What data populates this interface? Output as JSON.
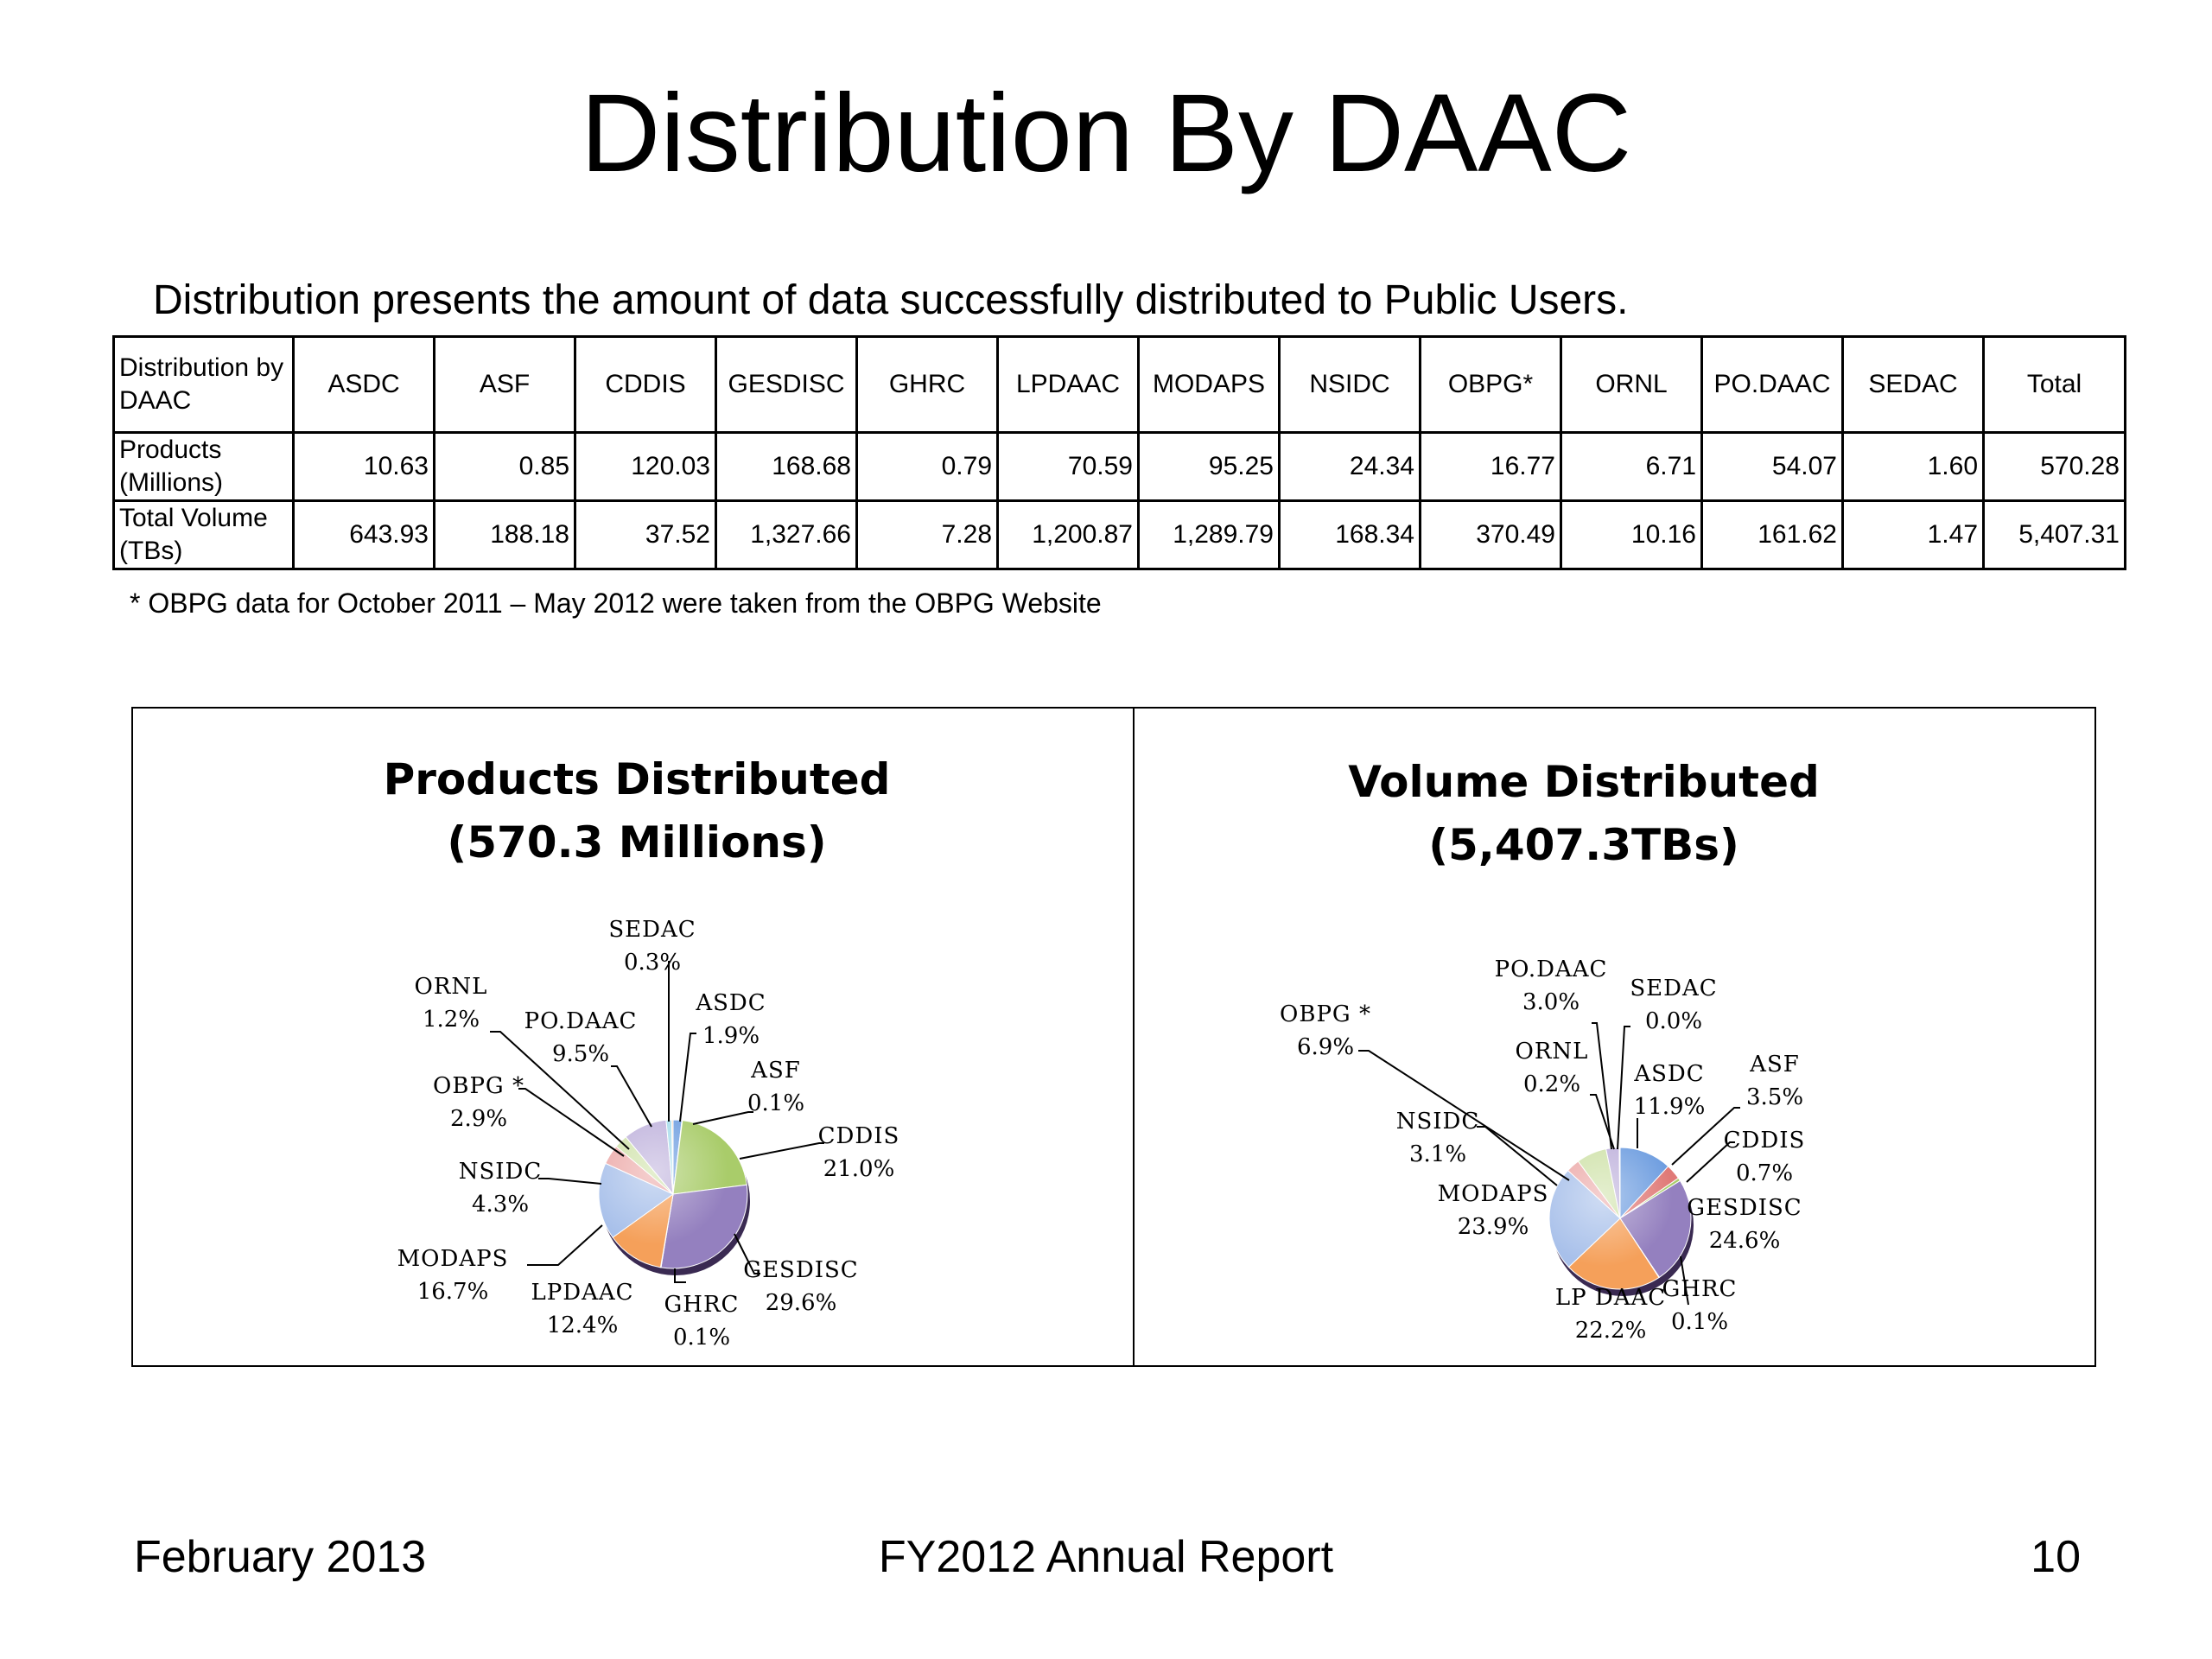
{
  "slide": {
    "title": "Distribution By DAAC",
    "intro": "Distribution presents the amount of data successfully distributed to Public Users.",
    "footnote": "* OBPG data for October 2011 – May 2012 were taken from the OBPG Website"
  },
  "table": {
    "header_label": "Distribution by DAAC",
    "columns": [
      "ASDC",
      "ASF",
      "CDDIS",
      "GESDISC",
      "GHRC",
      "LPDAAC",
      "MODAPS",
      "NSIDC",
      "OBPG*",
      "ORNL",
      "PO.DAAC",
      "SEDAC",
      "Total"
    ],
    "rows": [
      {
        "label": "Products (Millions)",
        "values": [
          "10.63",
          "0.85",
          "120.03",
          "168.68",
          "0.79",
          "70.59",
          "95.25",
          "24.34",
          "16.77",
          "6.71",
          "54.07",
          "1.60",
          "570.28"
        ]
      },
      {
        "label": "Total Volume (TBs)",
        "values": [
          "643.93",
          "188.18",
          "37.52",
          "1,327.66",
          "7.28",
          "1,200.87",
          "1,289.79",
          "168.34",
          "370.49",
          "10.16",
          "161.62",
          "1.47",
          "5,407.31"
        ]
      }
    ]
  },
  "chart_data": [
    {
      "type": "pie",
      "title": "Products Distributed",
      "subtitle": "(570.3 Millions)",
      "categories": [
        "ASDC",
        "ASF",
        "CDDIS",
        "GESDISC",
        "GHRC",
        "LPDAAC",
        "MODAPS",
        "NSIDC",
        "OBPG *",
        "PO.DAAC",
        "ORNL",
        "SEDAC"
      ],
      "values": [
        1.9,
        0.1,
        21.0,
        29.6,
        0.1,
        12.4,
        16.7,
        4.3,
        2.9,
        9.5,
        1.2,
        0.3
      ],
      "labels": [
        "1.9%",
        "0.1%",
        "21.0%",
        "29.6%",
        "0.1%",
        "12.4%",
        "16.7%",
        "4.3%",
        "2.9%",
        "9.5%",
        "1.2%",
        "0.3%"
      ]
    },
    {
      "type": "pie",
      "title": "Volume Distributed",
      "subtitle": "(5,407.3TBs)",
      "categories": [
        "ASDC",
        "ASF",
        "CDDIS",
        "GESDISC",
        "GHRC",
        "LP DAAC",
        "MODAPS",
        "NSIDC",
        "OBPG *",
        "PO.DAAC",
        "ORNL",
        "SEDAC"
      ],
      "values": [
        11.9,
        3.5,
        0.7,
        24.6,
        0.1,
        22.2,
        23.9,
        3.1,
        6.9,
        3.0,
        0.2,
        0.0
      ],
      "labels": [
        "11.9%",
        "3.5%",
        "0.7%",
        "24.6%",
        "0.1%",
        "22.2%",
        "23.9%",
        "3.1%",
        "6.9%",
        "3.0%",
        "0.2%",
        "0.0%"
      ]
    }
  ],
  "colors": {
    "ASDC": "#6f9ee0",
    "ASF": "#e07a77",
    "CDDIS": "#a9cc6a",
    "GESDISC": "#9480bf",
    "GHRC": "#4fc4dd",
    "LPDAAC": "#f5a05a",
    "MODAPS": "#a8c0ea",
    "NSIDC": "#ecaaa9",
    "OBPG": "#cfe2a9",
    "PODAAC": "#bfb2dc",
    "ORNL": "#a6dceb",
    "SEDAC": "#fac59f"
  },
  "footer": {
    "left": "February 2013",
    "center": "FY2012 Annual Report",
    "right": "10"
  }
}
